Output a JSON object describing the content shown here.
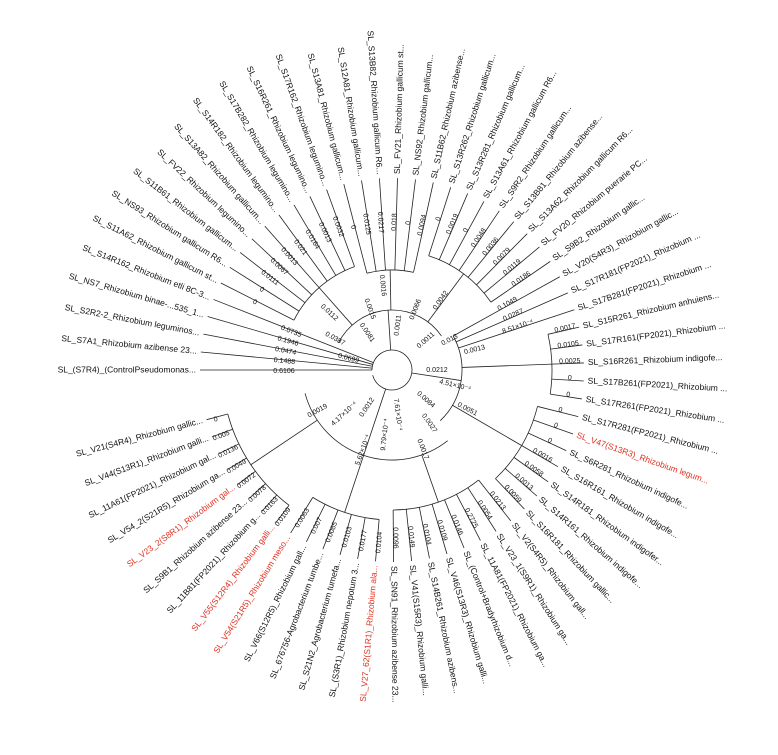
{
  "tree": {
    "leaves": [
      {
        "label": "SL_(S7R4)_(ControlPseudomonas...",
        "branch_length": "0.6106"
      },
      {
        "label": "SL_S7A1_Rhizobium azibense 23...",
        "branch_length": "0.1488"
      },
      {
        "label": "SL_S2R2-2_Rhizobium leguminos...",
        "branch_length": "0.0474"
      },
      {
        "label": "SL_NS7_Rhizobium binae-...535_1...",
        "branch_length": "0.1946"
      },
      {
        "label": "SL_S14R162_Rhizobium etli 8C-3...",
        "branch_length": "0.0735"
      },
      {
        "label": "SL_S11A62_Rhizobium gallicum st...",
        "branch_length": "0"
      },
      {
        "label": "SL_NS93_Rhizobium gallicum R6...",
        "branch_length": "0"
      },
      {
        "label": "SL_S11B61_Rhizobium gallicum...",
        "branch_length": "0.0111"
      },
      {
        "label": "SL_FV22_Rhizobium legumino...",
        "branch_length": "0.0067"
      },
      {
        "label": "SL_S13A82_Rhizobium gallicum...",
        "branch_length": "0.0013"
      },
      {
        "label": "SL_S14R182_Rhizobium legumino...",
        "branch_length": "0.021"
      },
      {
        "label": "SL_S17B282_Rhizobium legumino...",
        "branch_length": "0.0164"
      },
      {
        "label": "SL_S16R261_Rhizobium legumino...",
        "branch_length": "0.0013"
      },
      {
        "label": "SL_S17R162_Rhizobium legumino...",
        "branch_length": "0.0032"
      },
      {
        "label": "SL_S13A81_Rhizobium gallicum...",
        "branch_length": "0"
      },
      {
        "label": "SL_S12A81_Rhizobium gallicum...",
        "branch_length": "0.0125"
      },
      {
        "label": "SL_S13B82_Rhizobium gallicum R6...",
        "branch_length": "0.0217"
      },
      {
        "label": "SL_FV21_Rhizobium gallicum st...",
        "branch_length": "0.018"
      },
      {
        "label": "SL_NS92_Rhizobium gallicum...",
        "branch_length": "0"
      },
      {
        "label": "SL_S11B62_Rhizobium azibense...",
        "branch_length": "0.0094"
      },
      {
        "label": "SL_S13R262_Rhizobium gallicum...",
        "branch_length": "0"
      },
      {
        "label": "SL_S13R281_Rhizobium gallicum...",
        "branch_length": "0.0019"
      },
      {
        "label": "SL_S13A61_Rhizobium gallicum R6...",
        "branch_length": "0"
      },
      {
        "label": "SL_S9R2_Rhizobium gallicum...",
        "branch_length": "0.0048"
      },
      {
        "label": "SL_S13B81_Rhizobium azibense...",
        "branch_length": "0.0036"
      },
      {
        "label": "SL_S13A62_Rhizobium gallicum R6...",
        "branch_length": "0.0079"
      },
      {
        "label": "SL_FV20_Rhizobium puerarie PC...",
        "branch_length": "0.0119"
      },
      {
        "label": "SL_S9B2_Rhizobium gallic...",
        "branch_length": "0.0186"
      },
      {
        "label": "SL_V20(S4R3)_Rhizobium gallic...",
        "branch_length": "0.1049"
      },
      {
        "label": "SL_S17R181(FP2021)_Rhizobium ...",
        "branch_length": "0.0287"
      },
      {
        "label": "SL_S17B281(FP2021)_Rhizobium ...",
        "branch_length": "8.51×10⁻⁴"
      },
      {
        "label": "SL_S15R261_Rhizobium anhuiens...",
        "branch_length": "0.0017"
      },
      {
        "label": "SL_S17R161(FP2021)_Rhizobium ...",
        "branch_length": "0.0105"
      },
      {
        "label": "SL_S16R261_Rhizobium indigofe...",
        "branch_length": "0.0025"
      },
      {
        "label": "SL_S17B261(FP2021)_Rhizobium ...",
        "branch_length": "0"
      },
      {
        "label": "SL_S17R261(FP2021)_Rhizobium ...",
        "branch_length": "0"
      },
      {
        "label": "SL_S17R281(FP2021)_Rhizobium ...",
        "branch_length": "0"
      },
      {
        "label": "SL_V47(S13R3)_Rhizobium legum...",
        "branch_length": "0",
        "highlighted": true
      },
      {
        "label": "SL_S6R281_Rhizobium indigofe...",
        "branch_length": "0"
      },
      {
        "label": "SL_S16R161_Rhizobium indigofe...",
        "branch_length": "0.0016"
      },
      {
        "label": "SL_S14R181_Rhizobium indigofer...",
        "branch_length": "0.0058"
      },
      {
        "label": "SL_S14R161_Rhizobium indigofe...",
        "branch_length": "0.0013"
      },
      {
        "label": "SL_S16R181_Rhizobium gallic...",
        "branch_length": "0.0059"
      },
      {
        "label": "SL_V2(S4R5)_Rhizobium gall...",
        "branch_length": "0.0213"
      },
      {
        "label": "SL_V23_1(S9R1)_Rhizobium ga...",
        "branch_length": "0.0054"
      },
      {
        "label": "SL_11A81(FP2021)_Rhizobium ga...",
        "branch_length": "0.2725"
      },
      {
        "label": "SL_(Control+Bradyrhizobium d...",
        "branch_length": "0.0146"
      },
      {
        "label": "SL_V46(S13R3)_Rhizobium galli...",
        "branch_length": "0.0109"
      },
      {
        "label": "SL_S14B261_Rhizobium azibens...",
        "branch_length": "0.0104"
      },
      {
        "label": "SL_V41(S15R3)_Rhizobium galli...",
        "branch_length": "0.0149"
      },
      {
        "label": "SL_SN91_Rhizobium azibense 23...",
        "branch_length": "0.0096"
      },
      {
        "label": "SL_V27_62(S1R1)_Rhizobium ala...",
        "branch_length": "0.0104",
        "highlighted": true
      },
      {
        "label": "SL_(S3R1)_Rhizobium nepotum 3...",
        "branch_length": "0.0177"
      },
      {
        "label": "SL_S21N2_Agrobacterium tumefa...",
        "branch_length": "0.0103"
      },
      {
        "label": "SL_676756-Agrobacterium tumbe...",
        "branch_length": "0.0085"
      },
      {
        "label": "SL_V66(S12R5)_Rhizobium gall...",
        "branch_length": "0.007"
      },
      {
        "label": "SL_V54(S21R5)_Rhizobium meso...",
        "branch_length": "0.0063",
        "highlighted": true
      },
      {
        "label": "SL_V55(S12R4)_Rhizobium galli...",
        "branch_length": "0.0109",
        "highlighted": true
      },
      {
        "label": "SL_11B81(FP2021)_Rhizobium g...",
        "branch_length": "0.0163"
      },
      {
        "label": "SL_S9B1_Rhizobium azibense 23...",
        "branch_length": "0.0078"
      },
      {
        "label": "SL_V23_2(S8R1)_Rhizobium gal...",
        "branch_length": "0.0072",
        "highlighted": true
      },
      {
        "label": "SL_V54_2(S21R5)_Rhizobium ga...",
        "branch_length": "0.0049"
      },
      {
        "label": "SL_11A61(FP2021)_Rhizobium gal...",
        "branch_length": "0.0136"
      },
      {
        "label": "SL_V44(S13R1)_Rhizobium galli...",
        "branch_length": "0.005"
      },
      {
        "label": "SL_V21(S4R4)_Rhizobium gallic...",
        "branch_length": "0"
      }
    ],
    "internal_labels": [
      "0.0699",
      "0.0387",
      "0.0112",
      "0.0081",
      "0.0015",
      "0.0016",
      "0.0011",
      "0.0066",
      "0.0042",
      "0.0011",
      "0.013",
      "0.0013",
      "0.0212",
      "4.51×10⁻⁴",
      "0.0051",
      "0.0084",
      "0.0027",
      "0.0017",
      "7.61×10⁻⁴",
      "9.79×10⁻⁴",
      "5.62×10⁻⁴",
      "0.0012",
      "4.17×10⁻⁴",
      "0.0019"
    ]
  }
}
